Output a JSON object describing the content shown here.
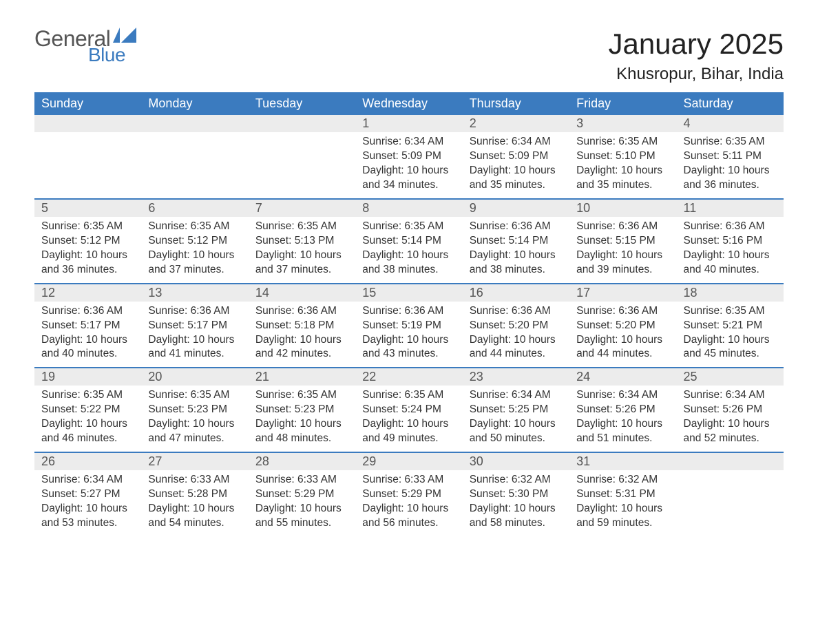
{
  "logo": {
    "word1": "General",
    "word2": "Blue",
    "word1_color": "#555555",
    "word2_color": "#3b7bbf",
    "accent_color": "#3b7bbf"
  },
  "header": {
    "month_title": "January 2025",
    "location": "Khusropur, Bihar, India"
  },
  "styling": {
    "header_bg": "#3b7bbf",
    "header_text": "#ffffff",
    "daynum_bg": "#ececec",
    "daynum_text": "#555555",
    "body_text": "#333333",
    "row_border": "#3b7bbf",
    "page_bg": "#ffffff",
    "th_fontsize": 18,
    "daynum_fontsize": 18,
    "content_fontsize": 15.5,
    "title_fontsize": 42,
    "location_fontsize": 24
  },
  "weekdays": [
    "Sunday",
    "Monday",
    "Tuesday",
    "Wednesday",
    "Thursday",
    "Friday",
    "Saturday"
  ],
  "leading_blanks": 3,
  "days": [
    {
      "n": "1",
      "sunrise": "Sunrise: 6:34 AM",
      "sunset": "Sunset: 5:09 PM",
      "daylight": "Daylight: 10 hours and 34 minutes."
    },
    {
      "n": "2",
      "sunrise": "Sunrise: 6:34 AM",
      "sunset": "Sunset: 5:09 PM",
      "daylight": "Daylight: 10 hours and 35 minutes."
    },
    {
      "n": "3",
      "sunrise": "Sunrise: 6:35 AM",
      "sunset": "Sunset: 5:10 PM",
      "daylight": "Daylight: 10 hours and 35 minutes."
    },
    {
      "n": "4",
      "sunrise": "Sunrise: 6:35 AM",
      "sunset": "Sunset: 5:11 PM",
      "daylight": "Daylight: 10 hours and 36 minutes."
    },
    {
      "n": "5",
      "sunrise": "Sunrise: 6:35 AM",
      "sunset": "Sunset: 5:12 PM",
      "daylight": "Daylight: 10 hours and 36 minutes."
    },
    {
      "n": "6",
      "sunrise": "Sunrise: 6:35 AM",
      "sunset": "Sunset: 5:12 PM",
      "daylight": "Daylight: 10 hours and 37 minutes."
    },
    {
      "n": "7",
      "sunrise": "Sunrise: 6:35 AM",
      "sunset": "Sunset: 5:13 PM",
      "daylight": "Daylight: 10 hours and 37 minutes."
    },
    {
      "n": "8",
      "sunrise": "Sunrise: 6:35 AM",
      "sunset": "Sunset: 5:14 PM",
      "daylight": "Daylight: 10 hours and 38 minutes."
    },
    {
      "n": "9",
      "sunrise": "Sunrise: 6:36 AM",
      "sunset": "Sunset: 5:14 PM",
      "daylight": "Daylight: 10 hours and 38 minutes."
    },
    {
      "n": "10",
      "sunrise": "Sunrise: 6:36 AM",
      "sunset": "Sunset: 5:15 PM",
      "daylight": "Daylight: 10 hours and 39 minutes."
    },
    {
      "n": "11",
      "sunrise": "Sunrise: 6:36 AM",
      "sunset": "Sunset: 5:16 PM",
      "daylight": "Daylight: 10 hours and 40 minutes."
    },
    {
      "n": "12",
      "sunrise": "Sunrise: 6:36 AM",
      "sunset": "Sunset: 5:17 PM",
      "daylight": "Daylight: 10 hours and 40 minutes."
    },
    {
      "n": "13",
      "sunrise": "Sunrise: 6:36 AM",
      "sunset": "Sunset: 5:17 PM",
      "daylight": "Daylight: 10 hours and 41 minutes."
    },
    {
      "n": "14",
      "sunrise": "Sunrise: 6:36 AM",
      "sunset": "Sunset: 5:18 PM",
      "daylight": "Daylight: 10 hours and 42 minutes."
    },
    {
      "n": "15",
      "sunrise": "Sunrise: 6:36 AM",
      "sunset": "Sunset: 5:19 PM",
      "daylight": "Daylight: 10 hours and 43 minutes."
    },
    {
      "n": "16",
      "sunrise": "Sunrise: 6:36 AM",
      "sunset": "Sunset: 5:20 PM",
      "daylight": "Daylight: 10 hours and 44 minutes."
    },
    {
      "n": "17",
      "sunrise": "Sunrise: 6:36 AM",
      "sunset": "Sunset: 5:20 PM",
      "daylight": "Daylight: 10 hours and 44 minutes."
    },
    {
      "n": "18",
      "sunrise": "Sunrise: 6:35 AM",
      "sunset": "Sunset: 5:21 PM",
      "daylight": "Daylight: 10 hours and 45 minutes."
    },
    {
      "n": "19",
      "sunrise": "Sunrise: 6:35 AM",
      "sunset": "Sunset: 5:22 PM",
      "daylight": "Daylight: 10 hours and 46 minutes."
    },
    {
      "n": "20",
      "sunrise": "Sunrise: 6:35 AM",
      "sunset": "Sunset: 5:23 PM",
      "daylight": "Daylight: 10 hours and 47 minutes."
    },
    {
      "n": "21",
      "sunrise": "Sunrise: 6:35 AM",
      "sunset": "Sunset: 5:23 PM",
      "daylight": "Daylight: 10 hours and 48 minutes."
    },
    {
      "n": "22",
      "sunrise": "Sunrise: 6:35 AM",
      "sunset": "Sunset: 5:24 PM",
      "daylight": "Daylight: 10 hours and 49 minutes."
    },
    {
      "n": "23",
      "sunrise": "Sunrise: 6:34 AM",
      "sunset": "Sunset: 5:25 PM",
      "daylight": "Daylight: 10 hours and 50 minutes."
    },
    {
      "n": "24",
      "sunrise": "Sunrise: 6:34 AM",
      "sunset": "Sunset: 5:26 PM",
      "daylight": "Daylight: 10 hours and 51 minutes."
    },
    {
      "n": "25",
      "sunrise": "Sunrise: 6:34 AM",
      "sunset": "Sunset: 5:26 PM",
      "daylight": "Daylight: 10 hours and 52 minutes."
    },
    {
      "n": "26",
      "sunrise": "Sunrise: 6:34 AM",
      "sunset": "Sunset: 5:27 PM",
      "daylight": "Daylight: 10 hours and 53 minutes."
    },
    {
      "n": "27",
      "sunrise": "Sunrise: 6:33 AM",
      "sunset": "Sunset: 5:28 PM",
      "daylight": "Daylight: 10 hours and 54 minutes."
    },
    {
      "n": "28",
      "sunrise": "Sunrise: 6:33 AM",
      "sunset": "Sunset: 5:29 PM",
      "daylight": "Daylight: 10 hours and 55 minutes."
    },
    {
      "n": "29",
      "sunrise": "Sunrise: 6:33 AM",
      "sunset": "Sunset: 5:29 PM",
      "daylight": "Daylight: 10 hours and 56 minutes."
    },
    {
      "n": "30",
      "sunrise": "Sunrise: 6:32 AM",
      "sunset": "Sunset: 5:30 PM",
      "daylight": "Daylight: 10 hours and 58 minutes."
    },
    {
      "n": "31",
      "sunrise": "Sunrise: 6:32 AM",
      "sunset": "Sunset: 5:31 PM",
      "daylight": "Daylight: 10 hours and 59 minutes."
    }
  ]
}
